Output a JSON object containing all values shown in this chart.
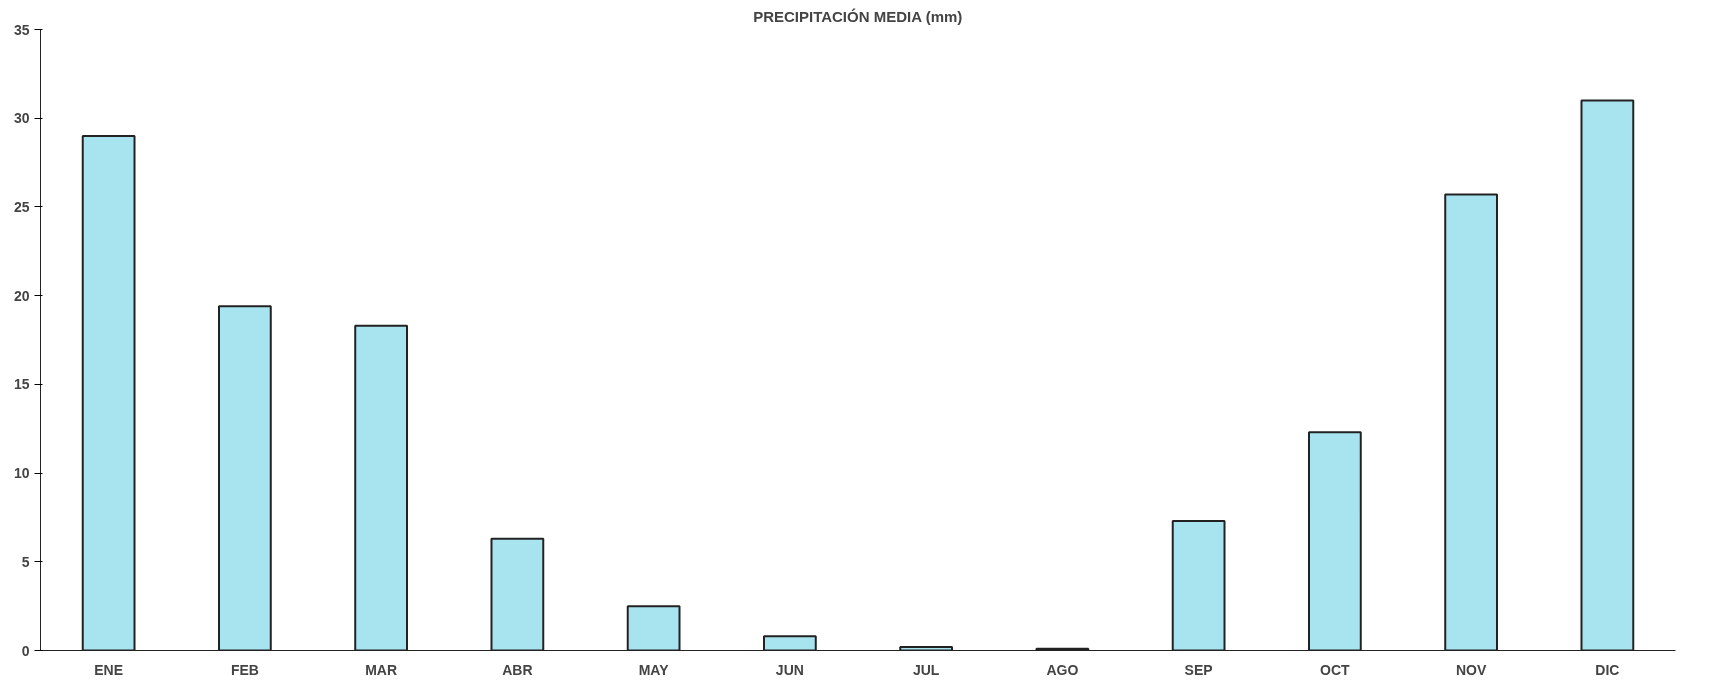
{
  "chart_data": {
    "type": "bar",
    "title": "PRECIPITACIÓN MEDIA (mm)",
    "categories": [
      "ENE",
      "FEB",
      "MAR",
      "ABR",
      "MAY",
      "JUN",
      "JUL",
      "AGO",
      "SEP",
      "OCT",
      "NOV",
      "DIC"
    ],
    "values": [
      29.0,
      19.4,
      18.3,
      6.3,
      2.5,
      0.8,
      0.2,
      0.1,
      7.3,
      12.3,
      25.7,
      31.0
    ],
    "color": "#a8e4f0",
    "ylim": [
      0,
      35
    ],
    "yticks": [
      0,
      5,
      10,
      15,
      20,
      25,
      30,
      35
    ],
    "grid": false
  }
}
